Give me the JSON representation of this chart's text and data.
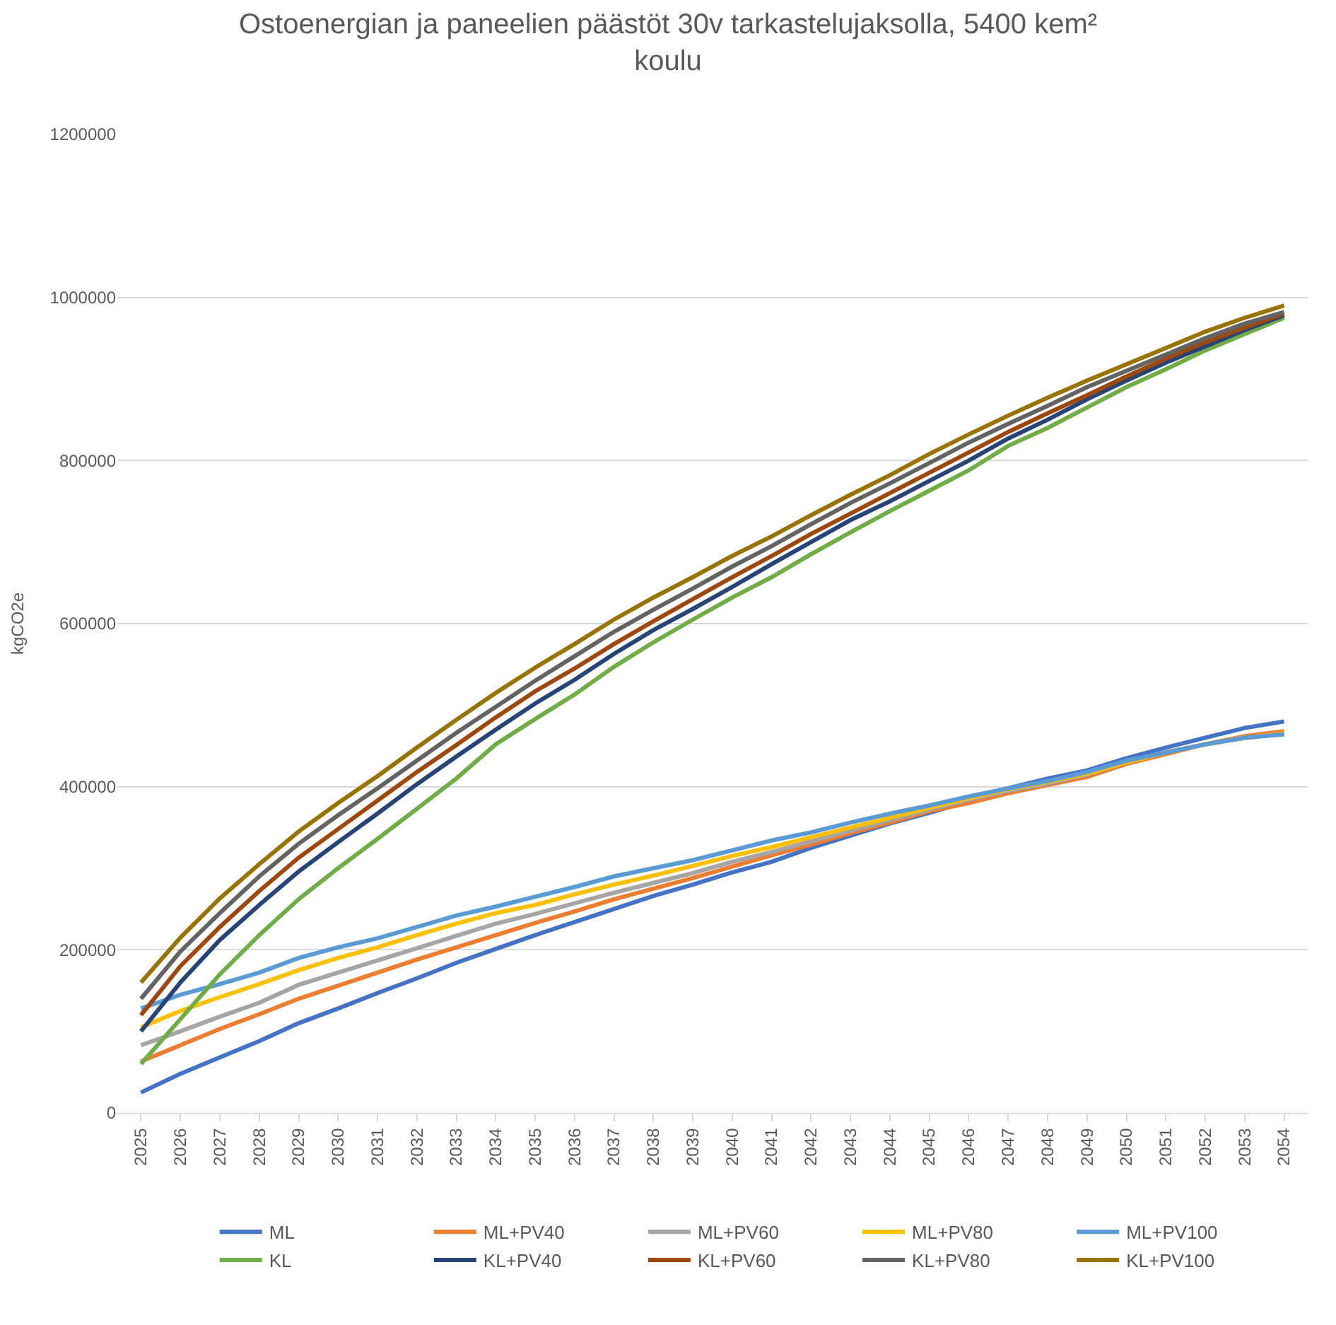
{
  "chart_data": {
    "type": "line",
    "title": "Ostoenergian ja paneelien päästöt 30v tarkastelujaksolla, 5400 kem²\nkoulu",
    "ylabel": "kgCO2e",
    "categories": [
      "2025",
      "2026",
      "2027",
      "2028",
      "2029",
      "2030",
      "2031",
      "2032",
      "2033",
      "2034",
      "2035",
      "2036",
      "2037",
      "2038",
      "2039",
      "2040",
      "2041",
      "2042",
      "2043",
      "2044",
      "2045",
      "2046",
      "2047",
      "2048",
      "2049",
      "2050",
      "2051",
      "2052",
      "2053",
      "2054"
    ],
    "ylim": [
      0,
      1200000
    ],
    "yticks": [
      0,
      200000,
      400000,
      600000,
      800000,
      1000000,
      1200000
    ],
    "grid": "y",
    "legend": "bottom",
    "marker": "none",
    "line_style": "solid",
    "series": [
      {
        "name": "ML",
        "color": "#4472c4",
        "values": [
          25000,
          48000,
          68000,
          88000,
          110000,
          128000,
          147000,
          165000,
          184000,
          201000,
          218000,
          234000,
          250000,
          266000,
          280000,
          295000,
          308000,
          325000,
          340000,
          355000,
          368000,
          382000,
          398000,
          410000,
          420000,
          435000,
          448000,
          460000,
          472000,
          480000
        ]
      },
      {
        "name": "ML+PV40",
        "color": "#ed7d31",
        "values": [
          63000,
          83000,
          103000,
          121000,
          140000,
          156000,
          172000,
          188000,
          203000,
          218000,
          233000,
          247000,
          262000,
          275000,
          288000,
          302000,
          316000,
          329000,
          343000,
          356000,
          370000,
          380000,
          392000,
          402000,
          412000,
          428000,
          440000,
          452000,
          462000,
          468000
        ]
      },
      {
        "name": "ML+PV60",
        "color": "#a5a5a5",
        "values": [
          83000,
          100000,
          118000,
          135000,
          157000,
          172000,
          187000,
          202000,
          217000,
          232000,
          244000,
          257000,
          270000,
          282000,
          294000,
          308000,
          320000,
          333000,
          346000,
          359000,
          372000,
          384000,
          395000,
          404000,
          415000,
          430000,
          442000,
          452000,
          460000,
          465000
        ]
      },
      {
        "name": "ML+PV80",
        "color": "#ffc000",
        "values": [
          105000,
          125000,
          142000,
          158000,
          175000,
          190000,
          203000,
          218000,
          232000,
          245000,
          255000,
          268000,
          280000,
          291000,
          303000,
          315000,
          326000,
          338000,
          350000,
          362000,
          374000,
          386000,
          397000,
          406000,
          416000,
          430000,
          442000,
          452000,
          460000,
          465000
        ]
      },
      {
        "name": "ML+PV100",
        "color": "#5b9bd5",
        "values": [
          128000,
          145000,
          158000,
          172000,
          190000,
          203000,
          214000,
          228000,
          242000,
          253000,
          265000,
          277000,
          290000,
          300000,
          310000,
          322000,
          334000,
          344000,
          356000,
          367000,
          377000,
          388000,
          398000,
          407000,
          418000,
          432000,
          442000,
          452000,
          460000,
          464000
        ]
      },
      {
        "name": "KL",
        "color": "#70ad47",
        "values": [
          60000,
          115000,
          170000,
          218000,
          262000,
          300000,
          336000,
          373000,
          410000,
          452000,
          483000,
          513000,
          547000,
          577000,
          605000,
          632000,
          657000,
          685000,
          712000,
          738000,
          763000,
          788000,
          818000,
          840000,
          865000,
          890000,
          912000,
          935000,
          955000,
          975000
        ]
      },
      {
        "name": "KL+PV40",
        "color": "#264478",
        "values": [
          100000,
          160000,
          212000,
          255000,
          296000,
          332000,
          367000,
          403000,
          437000,
          470000,
          502000,
          531000,
          563000,
          592000,
          618000,
          645000,
          673000,
          700000,
          727000,
          750000,
          775000,
          800000,
          827000,
          850000,
          875000,
          898000,
          920000,
          940000,
          960000,
          978000
        ]
      },
      {
        "name": "KL+PV60",
        "color": "#9e480e",
        "values": [
          120000,
          180000,
          228000,
          272000,
          313000,
          348000,
          383000,
          418000,
          451000,
          485000,
          517000,
          545000,
          575000,
          603000,
          630000,
          657000,
          683000,
          710000,
          735000,
          760000,
          785000,
          810000,
          835000,
          858000,
          880000,
          903000,
          925000,
          945000,
          963000,
          980000
        ]
      },
      {
        "name": "KL+PV80",
        "color": "#636363",
        "values": [
          140000,
          198000,
          245000,
          290000,
          330000,
          365000,
          398000,
          432000,
          466000,
          498000,
          530000,
          560000,
          590000,
          617000,
          643000,
          670000,
          695000,
          722000,
          748000,
          772000,
          797000,
          822000,
          845000,
          867000,
          890000,
          910000,
          930000,
          950000,
          968000,
          982000
        ]
      },
      {
        "name": "KL+PV100",
        "color": "#997300",
        "values": [
          160000,
          215000,
          263000,
          305000,
          345000,
          380000,
          413000,
          448000,
          482000,
          515000,
          546000,
          575000,
          605000,
          632000,
          657000,
          683000,
          707000,
          733000,
          758000,
          782000,
          808000,
          832000,
          855000,
          877000,
          898000,
          918000,
          938000,
          958000,
          975000,
          990000
        ]
      }
    ]
  }
}
